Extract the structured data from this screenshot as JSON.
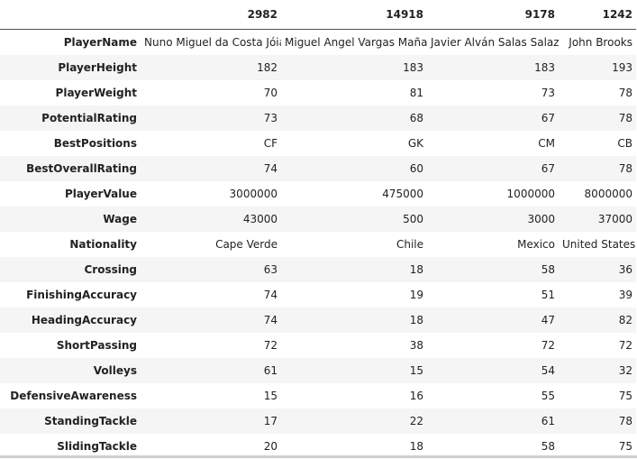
{
  "table": {
    "columns": [
      "",
      "2982",
      "14918",
      "9178",
      "1242"
    ],
    "rows": [
      {
        "label": "PlayerName",
        "values": [
          "Nuno Miguel da Costa Jóia",
          "Miguel Angel Vargas Mañan",
          "Javier Alván Salas Salazar",
          "John Brooks"
        ]
      },
      {
        "label": "PlayerHeight",
        "values": [
          "182",
          "183",
          "183",
          "193"
        ]
      },
      {
        "label": "PlayerWeight",
        "values": [
          "70",
          "81",
          "73",
          "78"
        ]
      },
      {
        "label": "PotentialRating",
        "values": [
          "73",
          "68",
          "67",
          "78"
        ]
      },
      {
        "label": "BestPositions",
        "values": [
          "CF",
          "GK",
          "CM",
          "CB"
        ]
      },
      {
        "label": "BestOverallRating",
        "values": [
          "74",
          "60",
          "67",
          "78"
        ]
      },
      {
        "label": "PlayerValue",
        "values": [
          "3000000",
          "475000",
          "1000000",
          "8000000"
        ]
      },
      {
        "label": "Wage",
        "values": [
          "43000",
          "500",
          "3000",
          "37000"
        ]
      },
      {
        "label": "Nationality",
        "values": [
          "Cape Verde",
          "Chile",
          "Mexico",
          "United States"
        ]
      },
      {
        "label": "Crossing",
        "values": [
          "63",
          "18",
          "58",
          "36"
        ]
      },
      {
        "label": "FinishingAccuracy",
        "values": [
          "74",
          "19",
          "51",
          "39"
        ]
      },
      {
        "label": "HeadingAccuracy",
        "values": [
          "74",
          "18",
          "47",
          "82"
        ]
      },
      {
        "label": "ShortPassing",
        "values": [
          "72",
          "38",
          "72",
          "72"
        ]
      },
      {
        "label": "Volleys",
        "values": [
          "61",
          "15",
          "54",
          "32"
        ]
      },
      {
        "label": "DefensiveAwareness",
        "values": [
          "15",
          "16",
          "55",
          "75"
        ]
      },
      {
        "label": "StandingTackle",
        "values": [
          "17",
          "22",
          "61",
          "78"
        ]
      },
      {
        "label": "SlidingTackle",
        "values": [
          "20",
          "18",
          "58",
          "75"
        ]
      }
    ]
  }
}
